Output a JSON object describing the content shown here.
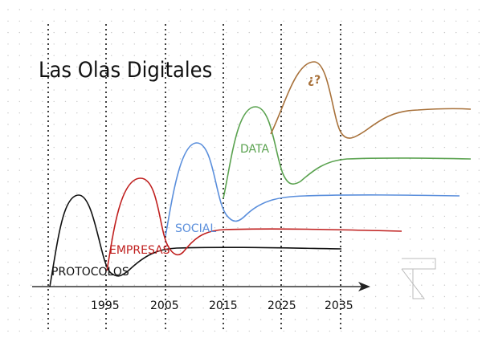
{
  "title": "Las Olas Digitales",
  "axis": {
    "ticks": [
      "1995",
      "2005",
      "2015",
      "2025",
      "2035"
    ]
  },
  "waves": [
    {
      "name": "PROTOCOLOS",
      "color": "#111111"
    },
    {
      "name": "EMPRESAS",
      "color": "#c0201f"
    },
    {
      "name": "SOCIAL",
      "color": "#5b8fdc"
    },
    {
      "name": "DATA",
      "color": "#5aa24f"
    },
    {
      "name": "¿?",
      "color": "#a8713a"
    }
  ],
  "colors": {
    "grid_dot": "#c8c8c8",
    "axis": "#333333",
    "logo": "#bbbbbb"
  }
}
